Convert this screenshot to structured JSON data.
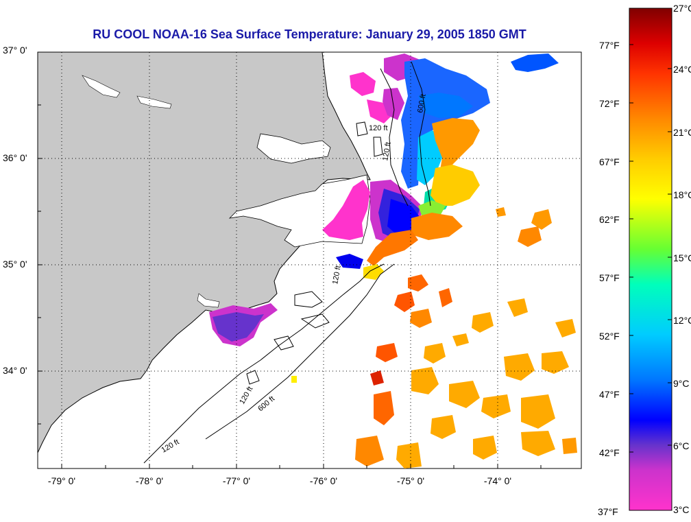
{
  "title": "RU COOL  NOAA-16  Sea Surface Temperature:  January 29, 2005 1850 GMT",
  "lat_labels": [
    "37° 0'",
    "36° 0'",
    "35° 0'",
    "34° 0'"
  ],
  "lon_labels": [
    "-79° 0'",
    "-78° 0'",
    "-77° 0'",
    "-76° 0'",
    "-75° 0'",
    "-74° 0'"
  ],
  "contour_labels": [
    "120 ft",
    "120 ft",
    "120 ft",
    "120 ft",
    "120 ft",
    "600 ft",
    "600 ft"
  ],
  "colorbar": {
    "celsius": [
      "27°C",
      "24°C",
      "21°C",
      "18°C",
      "15°C",
      "12°C",
      "9°C",
      "6°C",
      "3°C"
    ],
    "fahrenheit": [
      "77°F",
      "72°F",
      "67°F",
      "62°F",
      "57°F",
      "52°F",
      "47°F",
      "42°F",
      "37°F"
    ],
    "colors": [
      "#ff33cc",
      "#cc33cc",
      "#6633cc",
      "#0000ff",
      "#0088ff",
      "#00ccff",
      "#00ffcc",
      "#66ff33",
      "#ffff00",
      "#ffcc00",
      "#ff8800",
      "#ff3300",
      "#dd0000",
      "#800000"
    ]
  },
  "colors": {
    "land": "#c8c8c8",
    "ocean_no_data": "#ffffff",
    "title": "#1a1aa8"
  }
}
